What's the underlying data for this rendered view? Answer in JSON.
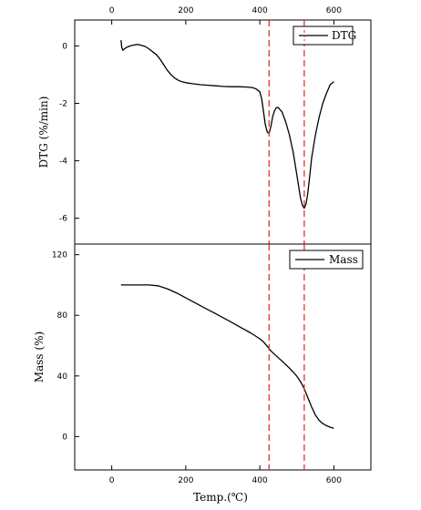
{
  "chart_data": [
    {
      "type": "line",
      "title": "",
      "xlabel": "",
      "ylabel": "DTG (%/min)",
      "xlim": [
        -100,
        700
      ],
      "ylim": [
        -6.9,
        0.9
      ],
      "x_ticks": [
        "0",
        "200",
        "400",
        "600"
      ],
      "x_ticks_position": "top",
      "y_ticks": [
        "0",
        "-2",
        "-4",
        "-6"
      ],
      "legend": {
        "placement": "top-right",
        "entries": [
          "DTG"
        ]
      },
      "grid": false,
      "series": [
        {
          "name": "DTG",
          "color": "#000000",
          "x": [
            25,
            27,
            30,
            35,
            40,
            50,
            60,
            70,
            80,
            90,
            100,
            110,
            120,
            130,
            140,
            150,
            160,
            170,
            180,
            190,
            200,
            220,
            240,
            260,
            280,
            300,
            320,
            340,
            360,
            380,
            390,
            400,
            405,
            410,
            415,
            420,
            425,
            430,
            435,
            440,
            445,
            450,
            460,
            470,
            480,
            490,
            500,
            505,
            510,
            515,
            520,
            525,
            530,
            535,
            540,
            550,
            560,
            570,
            580,
            590,
            600
          ],
          "y": [
            0.2,
            -0.05,
            -0.15,
            -0.1,
            -0.05,
            0.0,
            0.03,
            0.05,
            0.02,
            -0.02,
            -0.1,
            -0.2,
            -0.3,
            -0.45,
            -0.65,
            -0.85,
            -1.0,
            -1.12,
            -1.2,
            -1.25,
            -1.28,
            -1.32,
            -1.35,
            -1.37,
            -1.39,
            -1.41,
            -1.42,
            -1.42,
            -1.43,
            -1.45,
            -1.5,
            -1.6,
            -1.85,
            -2.3,
            -2.75,
            -3.0,
            -3.05,
            -2.8,
            -2.45,
            -2.25,
            -2.15,
            -2.15,
            -2.3,
            -2.65,
            -3.1,
            -3.7,
            -4.5,
            -4.9,
            -5.3,
            -5.55,
            -5.65,
            -5.5,
            -5.1,
            -4.5,
            -3.9,
            -3.1,
            -2.5,
            -2.0,
            -1.65,
            -1.35,
            -1.25
          ]
        }
      ],
      "reference_lines": {
        "orientation": "vertical",
        "style": "dashed",
        "color": "#dd3333",
        "x": [
          425,
          520
        ]
      }
    },
    {
      "type": "line",
      "title": "",
      "xlabel": "Temp.(℃)",
      "ylabel": "Mass (%)",
      "xlim": [
        -100,
        700
      ],
      "ylim": [
        -22,
        127
      ],
      "x_ticks": [
        "0",
        "200",
        "400",
        "600"
      ],
      "y_ticks": [
        "0",
        "40",
        "80",
        "120"
      ],
      "legend": {
        "placement": "top-right",
        "entries": [
          "Mass"
        ]
      },
      "grid": false,
      "series": [
        {
          "name": "Mass",
          "color": "#000000",
          "x": [
            25,
            50,
            75,
            100,
            125,
            150,
            175,
            200,
            225,
            250,
            275,
            300,
            325,
            350,
            375,
            400,
            410,
            420,
            430,
            440,
            450,
            460,
            470,
            480,
            490,
            500,
            510,
            520,
            530,
            540,
            550,
            560,
            570,
            580,
            590,
            600
          ],
          "y": [
            100,
            100,
            100,
            100,
            99.5,
            97.5,
            94.8,
            91.5,
            88.3,
            85,
            81.8,
            78.5,
            75.2,
            71.8,
            68.4,
            64.5,
            62.5,
            59.5,
            56.5,
            54.2,
            52,
            49.8,
            47.5,
            45.2,
            42.6,
            39.8,
            36.2,
            31.5,
            25.5,
            19.5,
            14.2,
            10.8,
            8.6,
            7.2,
            6.2,
            5.5
          ]
        }
      ],
      "reference_lines": {
        "orientation": "vertical",
        "style": "dashed",
        "color": "#dd3333",
        "x": [
          425,
          520
        ]
      }
    }
  ]
}
